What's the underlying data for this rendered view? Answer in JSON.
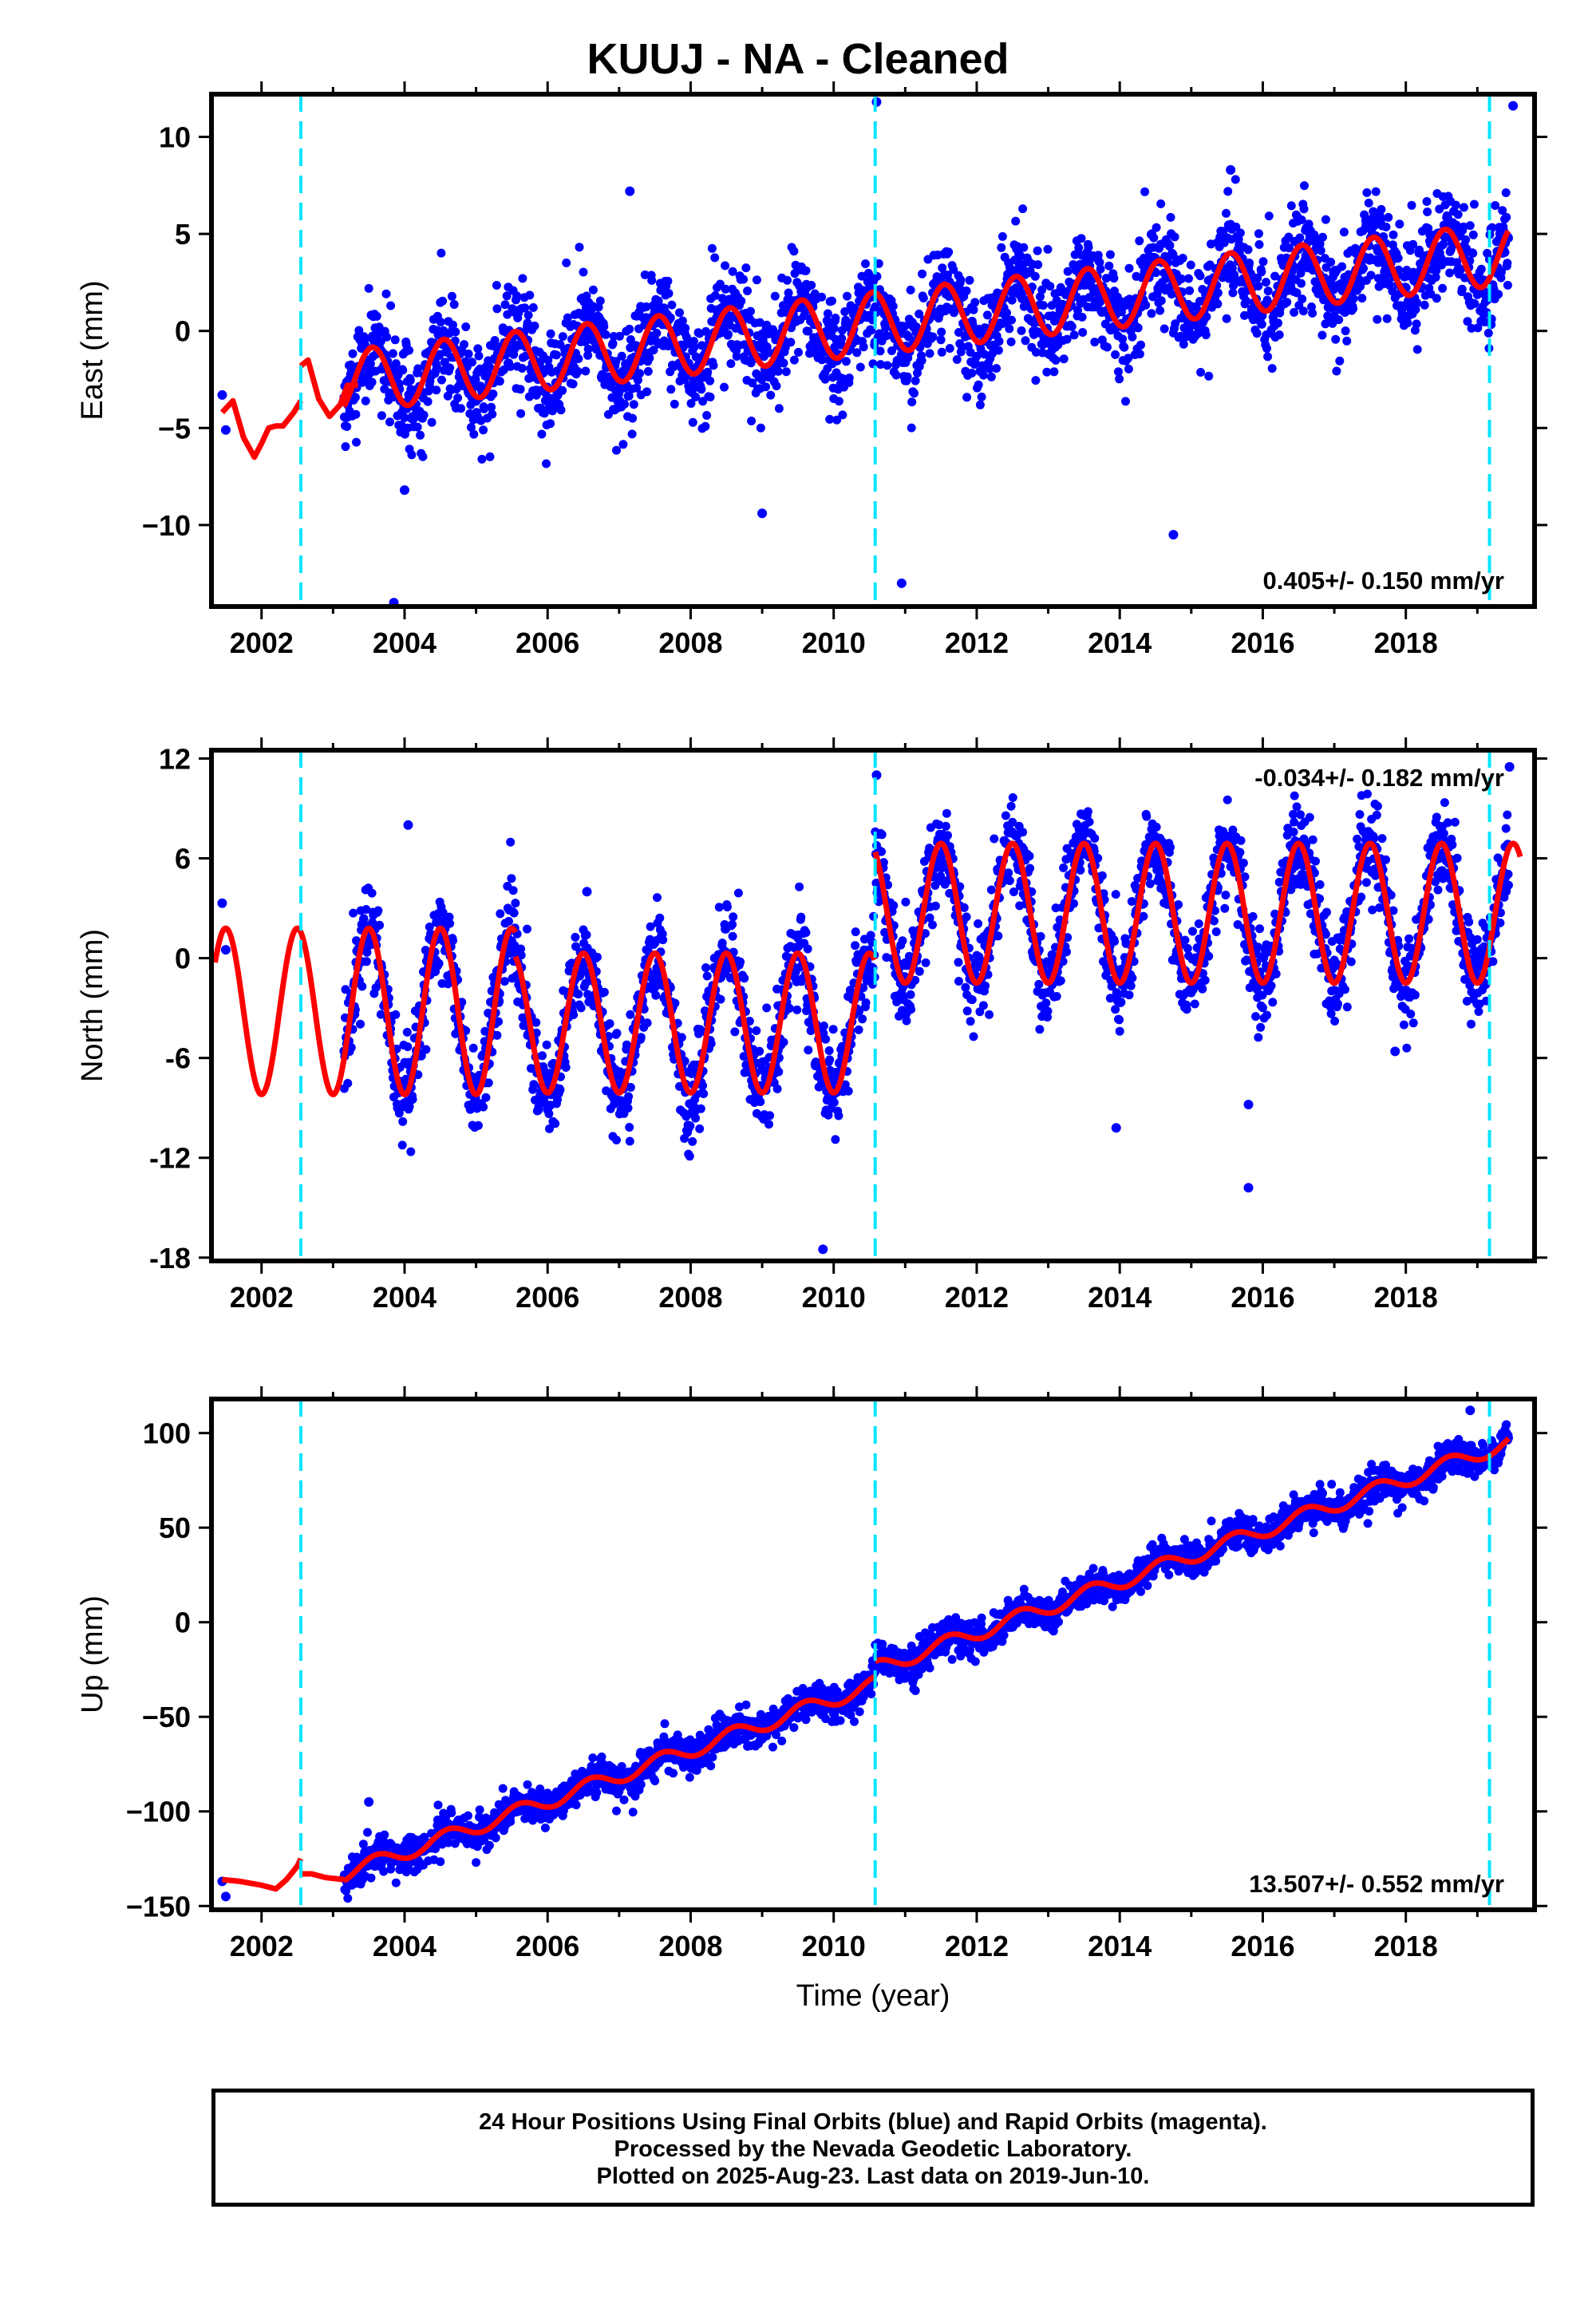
{
  "title": "KUUJ  - NA - Cleaned",
  "footer": {
    "line1": "24 Hour Positions Using Final Orbits (blue) and Rapid Orbits (magenta).",
    "line2": "Processed by the Nevada Geodetic Laboratory.",
    "line3": "Plotted on 2025-Aug-23. Last data on 2019-Jun-10."
  },
  "colors": {
    "observations": "#0000ff",
    "model": "#ff0000",
    "offsets": "#00e5ff",
    "frame": "#000000"
  },
  "chart_data": [
    {
      "type": "scatter",
      "name": "east",
      "ylabel": "East (mm)",
      "xlabel": "",
      "xlim": [
        2001.3,
        2019.8
      ],
      "ylim": [
        -14.2,
        12.2
      ],
      "xticks": [
        2002,
        2004,
        2006,
        2008,
        2010,
        2012,
        2014,
        2016,
        2018
      ],
      "yticks": [
        10,
        5,
        0,
        -5,
        -10
      ],
      "ytick_labels": [
        "10",
        "5",
        "0",
        "−5",
        "−10"
      ],
      "rate_text": "0.405+/- 0.150 mm/yr",
      "rate_position": "bottom-right",
      "offsets": [
        2002.55,
        2010.58,
        2019.17
      ],
      "data_start": 2003.15,
      "data_end": 2019.44,
      "trend": {
        "y0": -2.6,
        "t0": 2003.15,
        "rate": 0.405,
        "annual_amplitude": 1.6,
        "annual_peak": 0.55,
        "scatter": 1.3
      },
      "model_segments": [
        {
          "x": [
            2001.45,
            2001.6,
            2001.75,
            2001.9,
            2002.0,
            2002.1,
            2002.2,
            2002.3,
            2002.45,
            2002.55
          ],
          "y": [
            -4.2,
            -3.6,
            -5.5,
            -6.5,
            -5.8,
            -5.0,
            -4.9,
            -4.9,
            -4.2,
            -3.6
          ]
        },
        {
          "x": [
            2002.55,
            2002.65,
            2002.8,
            2002.95,
            2003.1,
            2003.2,
            2003.35
          ],
          "y": [
            -1.8,
            -1.5,
            -3.5,
            -4.4,
            -3.8,
            -2.8,
            -2.8
          ]
        }
      ],
      "outliers": [
        [
          2001.45,
          -3.3
        ],
        [
          2001.5,
          -5.1
        ],
        [
          2003.85,
          -14.0
        ],
        [
          2004.0,
          -8.2
        ],
        [
          2007.15,
          7.2
        ],
        [
          2009.0,
          -9.4
        ],
        [
          2010.6,
          11.8
        ],
        [
          2010.95,
          -13.0
        ],
        [
          2014.75,
          -10.5
        ],
        [
          2015.55,
          8.3
        ],
        [
          2019.5,
          11.6
        ]
      ]
    },
    {
      "type": "scatter",
      "name": "north",
      "ylabel": "North (mm)",
      "xlabel": "",
      "xlim": [
        2001.3,
        2019.8
      ],
      "ylim": [
        -18.2,
        12.5
      ],
      "xticks": [
        2002,
        2004,
        2006,
        2008,
        2010,
        2012,
        2014,
        2016,
        2018
      ],
      "yticks": [
        12,
        6,
        0,
        -6,
        -12,
        -18
      ],
      "ytick_labels": [
        "12",
        "6",
        "0",
        "-6",
        "-12",
        "-18"
      ],
      "rate_text": "-0.034+/- 0.182 mm/yr",
      "rate_position": "top-right",
      "offsets": [
        2002.55,
        2010.58,
        2019.17
      ],
      "data_start": 2003.15,
      "data_end": 2019.44,
      "segments": [
        {
          "start": 2001.35,
          "end": 2005.55,
          "mean": -3.2,
          "amplitude": 5.0,
          "peak": 0.5
        },
        {
          "start": 2005.55,
          "end": 2010.58,
          "mean": -3.9,
          "amplitude": 4.2,
          "peak": 0.5
        },
        {
          "start": 2010.58,
          "end": 2019.6,
          "mean": 2.7,
          "amplitude": 4.2,
          "peak": 0.5
        }
      ],
      "scatter": 1.4,
      "outliers": [
        [
          2001.45,
          3.3
        ],
        [
          2001.5,
          0.5
        ],
        [
          2004.05,
          8.0
        ],
        [
          2006.55,
          4.0
        ],
        [
          2009.85,
          -17.5
        ],
        [
          2010.6,
          11.0
        ],
        [
          2013.95,
          -10.2
        ],
        [
          2015.8,
          -13.8
        ],
        [
          2015.8,
          -8.8
        ],
        [
          2017.85,
          -5.6
        ],
        [
          2019.45,
          11.5
        ]
      ]
    },
    {
      "type": "scatter",
      "name": "up",
      "ylabel": "Up (mm)",
      "xlabel": "Time (year)",
      "xlim": [
        2001.3,
        2019.8
      ],
      "ylim": [
        -152,
        118
      ],
      "xticks": [
        2002,
        2004,
        2006,
        2008,
        2010,
        2012,
        2014,
        2016,
        2018
      ],
      "yticks": [
        100,
        50,
        0,
        -50,
        -100,
        -150
      ],
      "ytick_labels": [
        "100",
        "50",
        "0",
        "−50",
        "−100",
        "−150"
      ],
      "rate_text": "13.507+/- 0.552 mm/yr",
      "rate_position": "bottom-right",
      "offsets": [
        2002.55,
        2010.58,
        2019.17
      ],
      "data_start": 2003.15,
      "data_end": 2019.44,
      "trend": {
        "y0": -133.0,
        "t0": 2003.15,
        "rate": 13.507,
        "annual_amplitude": 4.0,
        "annual_peak": 0.6,
        "scatter": 4.5
      },
      "step": {
        "at": 2010.58,
        "size": 8.0
      },
      "model_segments": [
        {
          "x": [
            2001.45,
            2001.7,
            2002.0,
            2002.2,
            2002.35,
            2002.5,
            2002.55
          ],
          "y": [
            -136.0,
            -137.0,
            -139.0,
            -141.0,
            -136.0,
            -129.0,
            -125.0
          ]
        },
        {
          "x": [
            2002.55,
            2002.7,
            2002.9,
            2003.15
          ],
          "y": [
            -133.0,
            -133.0,
            -135.0,
            -136.0
          ]
        }
      ],
      "outliers": [
        [
          2001.45,
          -137.0
        ],
        [
          2001.5,
          -145.0
        ],
        [
          2003.5,
          -95.0
        ],
        [
          2018.9,
          112.0
        ]
      ]
    }
  ]
}
